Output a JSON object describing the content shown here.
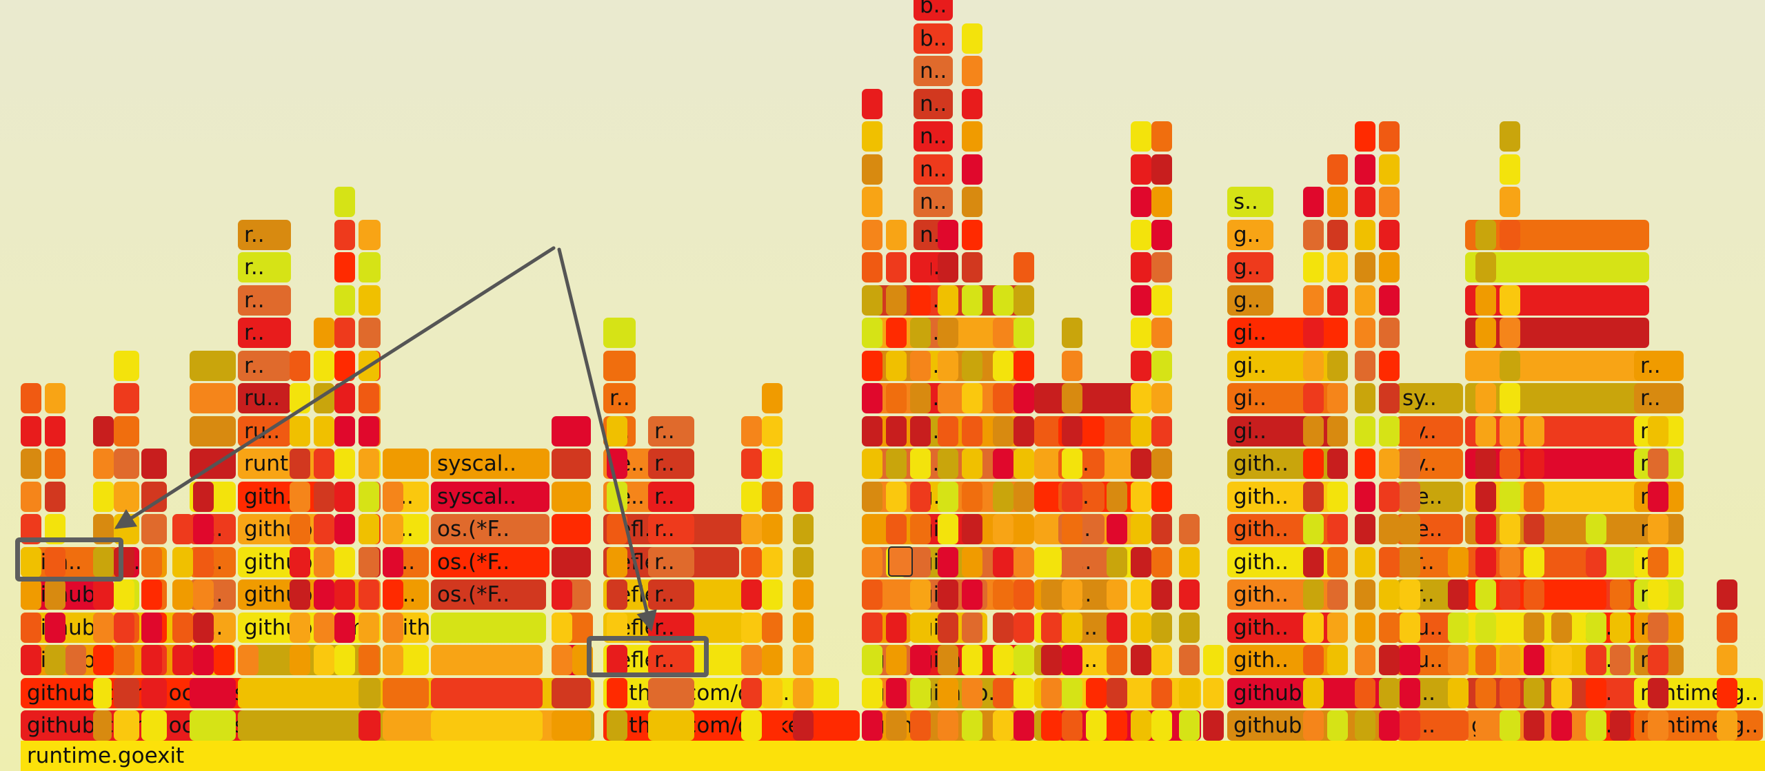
{
  "chart_data": {
    "type": "flame",
    "title": "",
    "root": "runtime.goexit",
    "palette": [
      "#e81c1c",
      "#ee3a1c",
      "#f05a12",
      "#f5851a",
      "#f8a415",
      "#fac80e",
      "#f3e30c",
      "#d6e316",
      "#c9a50c",
      "#e06a2c",
      "#d2381f",
      "#c81e1e",
      "#e0082c",
      "#ff2a00",
      "#f06e0e",
      "#f09b00",
      "#d88a10",
      "#f0c000"
    ],
    "columns": [
      [
        "github.com/docker/swarmkit/agent.(*Ag..",
        "github.com/docker/swarmkit/agent.(*wo..",
        "github.co..",
        "github.co..",
        "github...",
        "gith.."
      ],
      [
        "",
        "",
        "",
        "",
        "",
        "",
        "",
        "",
        ""
      ],
      [
        "",
        "",
        "",
        "",
        "",
        "g..",
        "",
        "",
        "",
        "",
        "",
        ""
      ],
      [
        "",
        "",
        "",
        "",
        "",
        "",
        "",
        "",
        ""
      ],
      [
        "",
        "",
        "",
        "g..",
        "g..",
        "g..",
        "g..",
        "",
        "",
        "",
        "",
        ""
      ],
      [
        "",
        "",
        "",
        "github.com/docker/swa..",
        "github...",
        "github...",
        "github...",
        "gith..",
        "runt..",
        "ru..",
        "ru..",
        "r..",
        "r..",
        "r..",
        "r..",
        "r.."
      ],
      [
        "",
        "",
        "",
        "",
        "",
        "",
        "",
        "",
        "",
        "",
        "",
        "",
        "",
        "",
        "",
        ""
      ],
      [
        "",
        "",
        "",
        "github.co..",
        "g..",
        "o..",
        "s..",
        "s..",
        ""
      ],
      [
        "",
        "",
        "",
        "",
        "os.(*F..",
        "os.(*F..",
        "os.(*F..",
        "syscal..",
        "syscal.."
      ],
      [
        "",
        "",
        "",
        "gith..",
        "",
        "",
        "",
        "",
        "",
        ""
      ],
      [
        "github.com/docke..",
        "github.com/doc..",
        "reflect..",
        "reflect..",
        "reflect..",
        "reflect..",
        "refl..",
        "re..",
        "re..",
        "r..",
        "r..",
        "",
        ""
      ],
      [
        "",
        "",
        "r..",
        "r..",
        "r..",
        "r..",
        "r..",
        "r..",
        "r..",
        "r.."
      ],
      [
        "github.co..",
        "g..",
        "g..",
        "",
        "",
        "",
        "",
        "",
        "",
        "",
        "",
        "",
        "",
        ""
      ],
      [
        "",
        "github..",
        "gith..",
        "gi..",
        "gi..",
        "gi..",
        "gi..",
        "g..",
        "i..",
        "i..",
        "i..",
        "i..",
        "i..",
        "i..",
        "g..",
        "n..",
        "n..",
        "n..",
        "n..",
        "n..",
        "n..",
        "b..",
        "b.."
      ],
      [
        "gi..",
        "gi..",
        "g..",
        "g..",
        "g..",
        "",
        "",
        "",
        "",
        "",
        ""
      ],
      [
        "g..",
        "gi..",
        "gi..",
        "gi..",
        "g..",
        "g..",
        "o..",
        "s..",
        "s..",
        ""
      ],
      [
        "github..",
        "github..",
        "gith..",
        "gith..",
        "gith..",
        "gith..",
        "gith..",
        "gith..",
        "gith..",
        "gi..",
        "gi..",
        "gi..",
        "gi..",
        "g..",
        "g..",
        "g..",
        "s.."
      ],
      [
        "gi..",
        "gi..",
        "bu..",
        "bu..",
        "cr..",
        "cr..",
        "ne..",
        "ne..",
        "sy..",
        "sy..",
        "sy.."
      ],
      [
        "g..",
        "",
        "",
        "",
        "",
        "",
        "",
        "",
        "",
        "",
        "",
        "",
        "",
        "",
        "",
        ""
      ],
      [
        "r..",
        "r..",
        "r..",
        "r..",
        "",
        ""
      ],
      [
        "runtime.g..",
        "runtime.g..",
        "r..",
        "r..",
        "r..",
        "r..",
        "r..",
        "r..",
        "r..",
        "r..",
        "r..",
        "r.."
      ]
    ],
    "highlights": [
      "gith..",
      "gith.."
    ]
  }
}
